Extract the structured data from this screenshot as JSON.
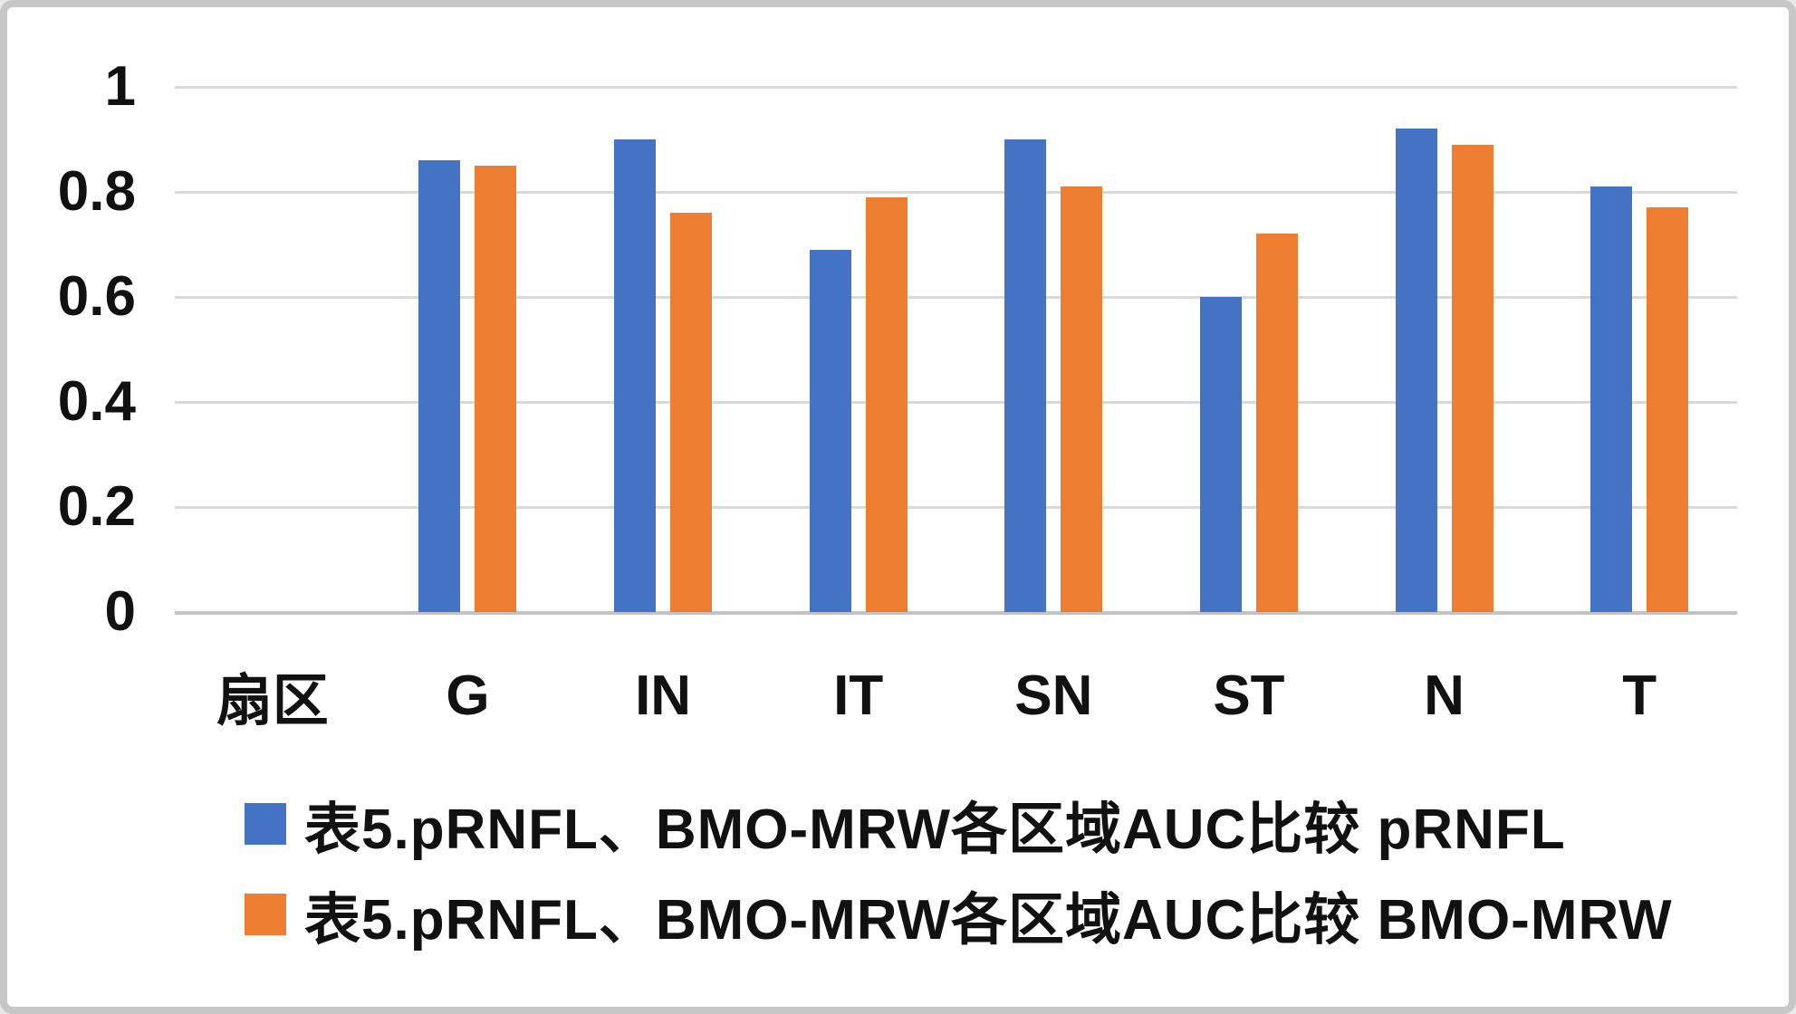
{
  "chart_data": {
    "type": "bar",
    "title": "",
    "xlabel": "",
    "ylabel": "",
    "categories": [
      "扇区",
      "G",
      "IN",
      "IT",
      "SN",
      "ST",
      "N",
      "T"
    ],
    "series": [
      {
        "name": "表5.pRNFL、BMO-MRW各区域AUC比较 pRNFL",
        "color": "#4472C4",
        "values": [
          null,
          0.86,
          0.9,
          0.69,
          0.9,
          0.6,
          0.92,
          0.81
        ]
      },
      {
        "name": "表5.pRNFL、BMO-MRW各区域AUC比较 BMO-MRW",
        "color": "#ED7D31",
        "values": [
          null,
          0.85,
          0.76,
          0.79,
          0.81,
          0.72,
          0.89,
          0.77
        ]
      }
    ],
    "y_axis": {
      "min": 0,
      "max": 1,
      "step": 0.2,
      "tick_labels": [
        "0",
        "0.2",
        "0.4",
        "0.6",
        "0.8",
        "1"
      ]
    },
    "grid": true,
    "legend_position": "bottom-left"
  },
  "colors": {
    "background": "#ffffff",
    "frame_border": "#c7c7c7",
    "gridline": "#d9d9d9",
    "baseline": "#c3c3c3",
    "text": "#111111",
    "series_blue": "#4472C4",
    "series_orange": "#ED7D31"
  }
}
